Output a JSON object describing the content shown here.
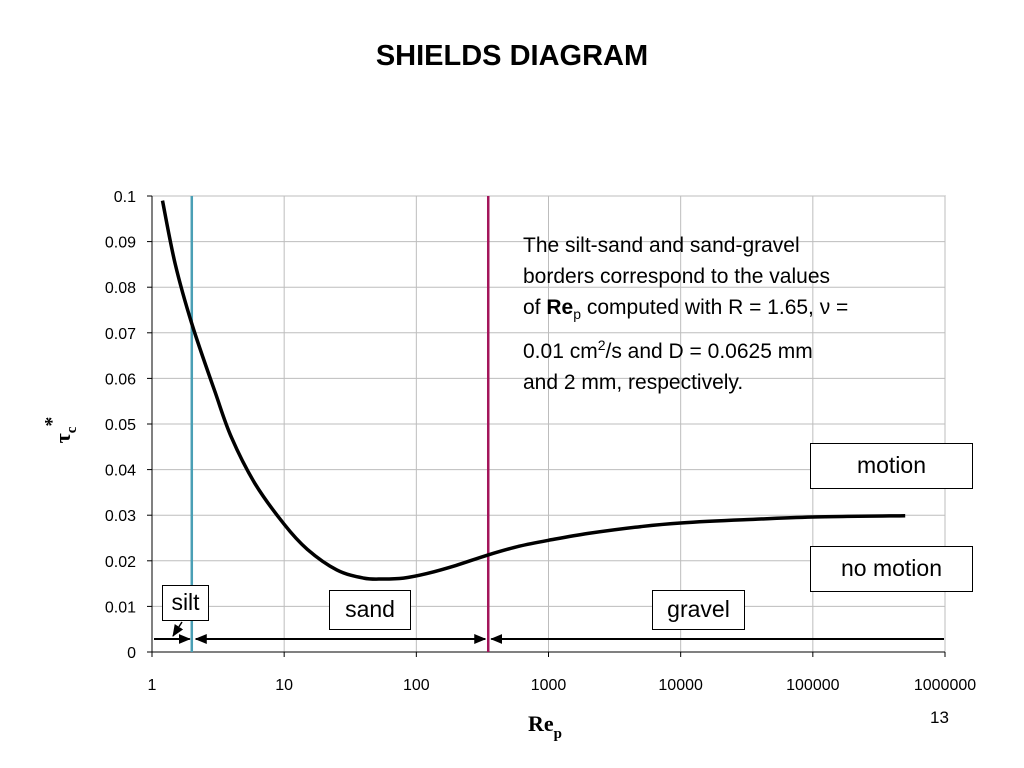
{
  "slide": {
    "title": "SHIELDS DIAGRAM",
    "page_number": "13"
  },
  "note": {
    "line1": "The silt-sand and sand-gravel",
    "line2": "borders correspond to the values",
    "line3_pre": "of ",
    "line3_bold": "Re",
    "line3_sub": "p",
    "line3_post": " computed with R = 1.65, ν =",
    "line4_pre": "0.01 cm",
    "line4_sup": "2",
    "line4_post": "/s and D = 0.0625 mm",
    "line5": "and 2 mm, respectively."
  },
  "labels": {
    "motion": "motion",
    "no_motion": "no motion",
    "silt": "silt",
    "sand": "sand",
    "gravel": "gravel"
  },
  "chart_data": {
    "type": "line",
    "title": "",
    "xlabel": "Re",
    "xlabel_sub": "p",
    "ylabel": "τ",
    "ylabel_sub": "c",
    "ylabel_sup": "*",
    "x_scale": "log",
    "xlim": [
      1,
      1000000
    ],
    "ylim": [
      0,
      0.1
    ],
    "x_ticks": [
      1,
      10,
      100,
      1000,
      10000,
      100000,
      1000000
    ],
    "x_tick_labels": [
      "1",
      "10",
      "100",
      "1000",
      "10000",
      "100000",
      "1000000"
    ],
    "y_ticks": [
      0,
      0.01,
      0.02,
      0.03,
      0.04,
      0.05,
      0.06,
      0.07,
      0.08,
      0.09,
      0.1
    ],
    "y_tick_labels": [
      "0",
      "0.01",
      "0.02",
      "0.03",
      "0.04",
      "0.05",
      "0.06",
      "0.07",
      "0.08",
      "0.09",
      "0.1"
    ],
    "grid": true,
    "series": [
      {
        "color": "#000000",
        "x": [
          1.2,
          1.5,
          2,
          3,
          4,
          6,
          10,
          15,
          25,
          40,
          56,
          80,
          120,
          200,
          350,
          600,
          1000,
          2000,
          5000,
          10000,
          30000,
          100000,
          500000
        ],
        "y": [
          0.099,
          0.085,
          0.072,
          0.057,
          0.047,
          0.037,
          0.028,
          0.0225,
          0.018,
          0.0162,
          0.016,
          0.0162,
          0.0172,
          0.019,
          0.0213,
          0.0232,
          0.0245,
          0.026,
          0.0275,
          0.0283,
          0.029,
          0.0296,
          0.0299
        ]
      }
    ],
    "vertical_lines": [
      {
        "x": 2,
        "color": "#4a9fb5",
        "meaning": "silt-sand border"
      },
      {
        "x": 350,
        "color": "#a3155a",
        "meaning": "sand-gravel border"
      }
    ],
    "y_tick_0_01": 0.01
  }
}
